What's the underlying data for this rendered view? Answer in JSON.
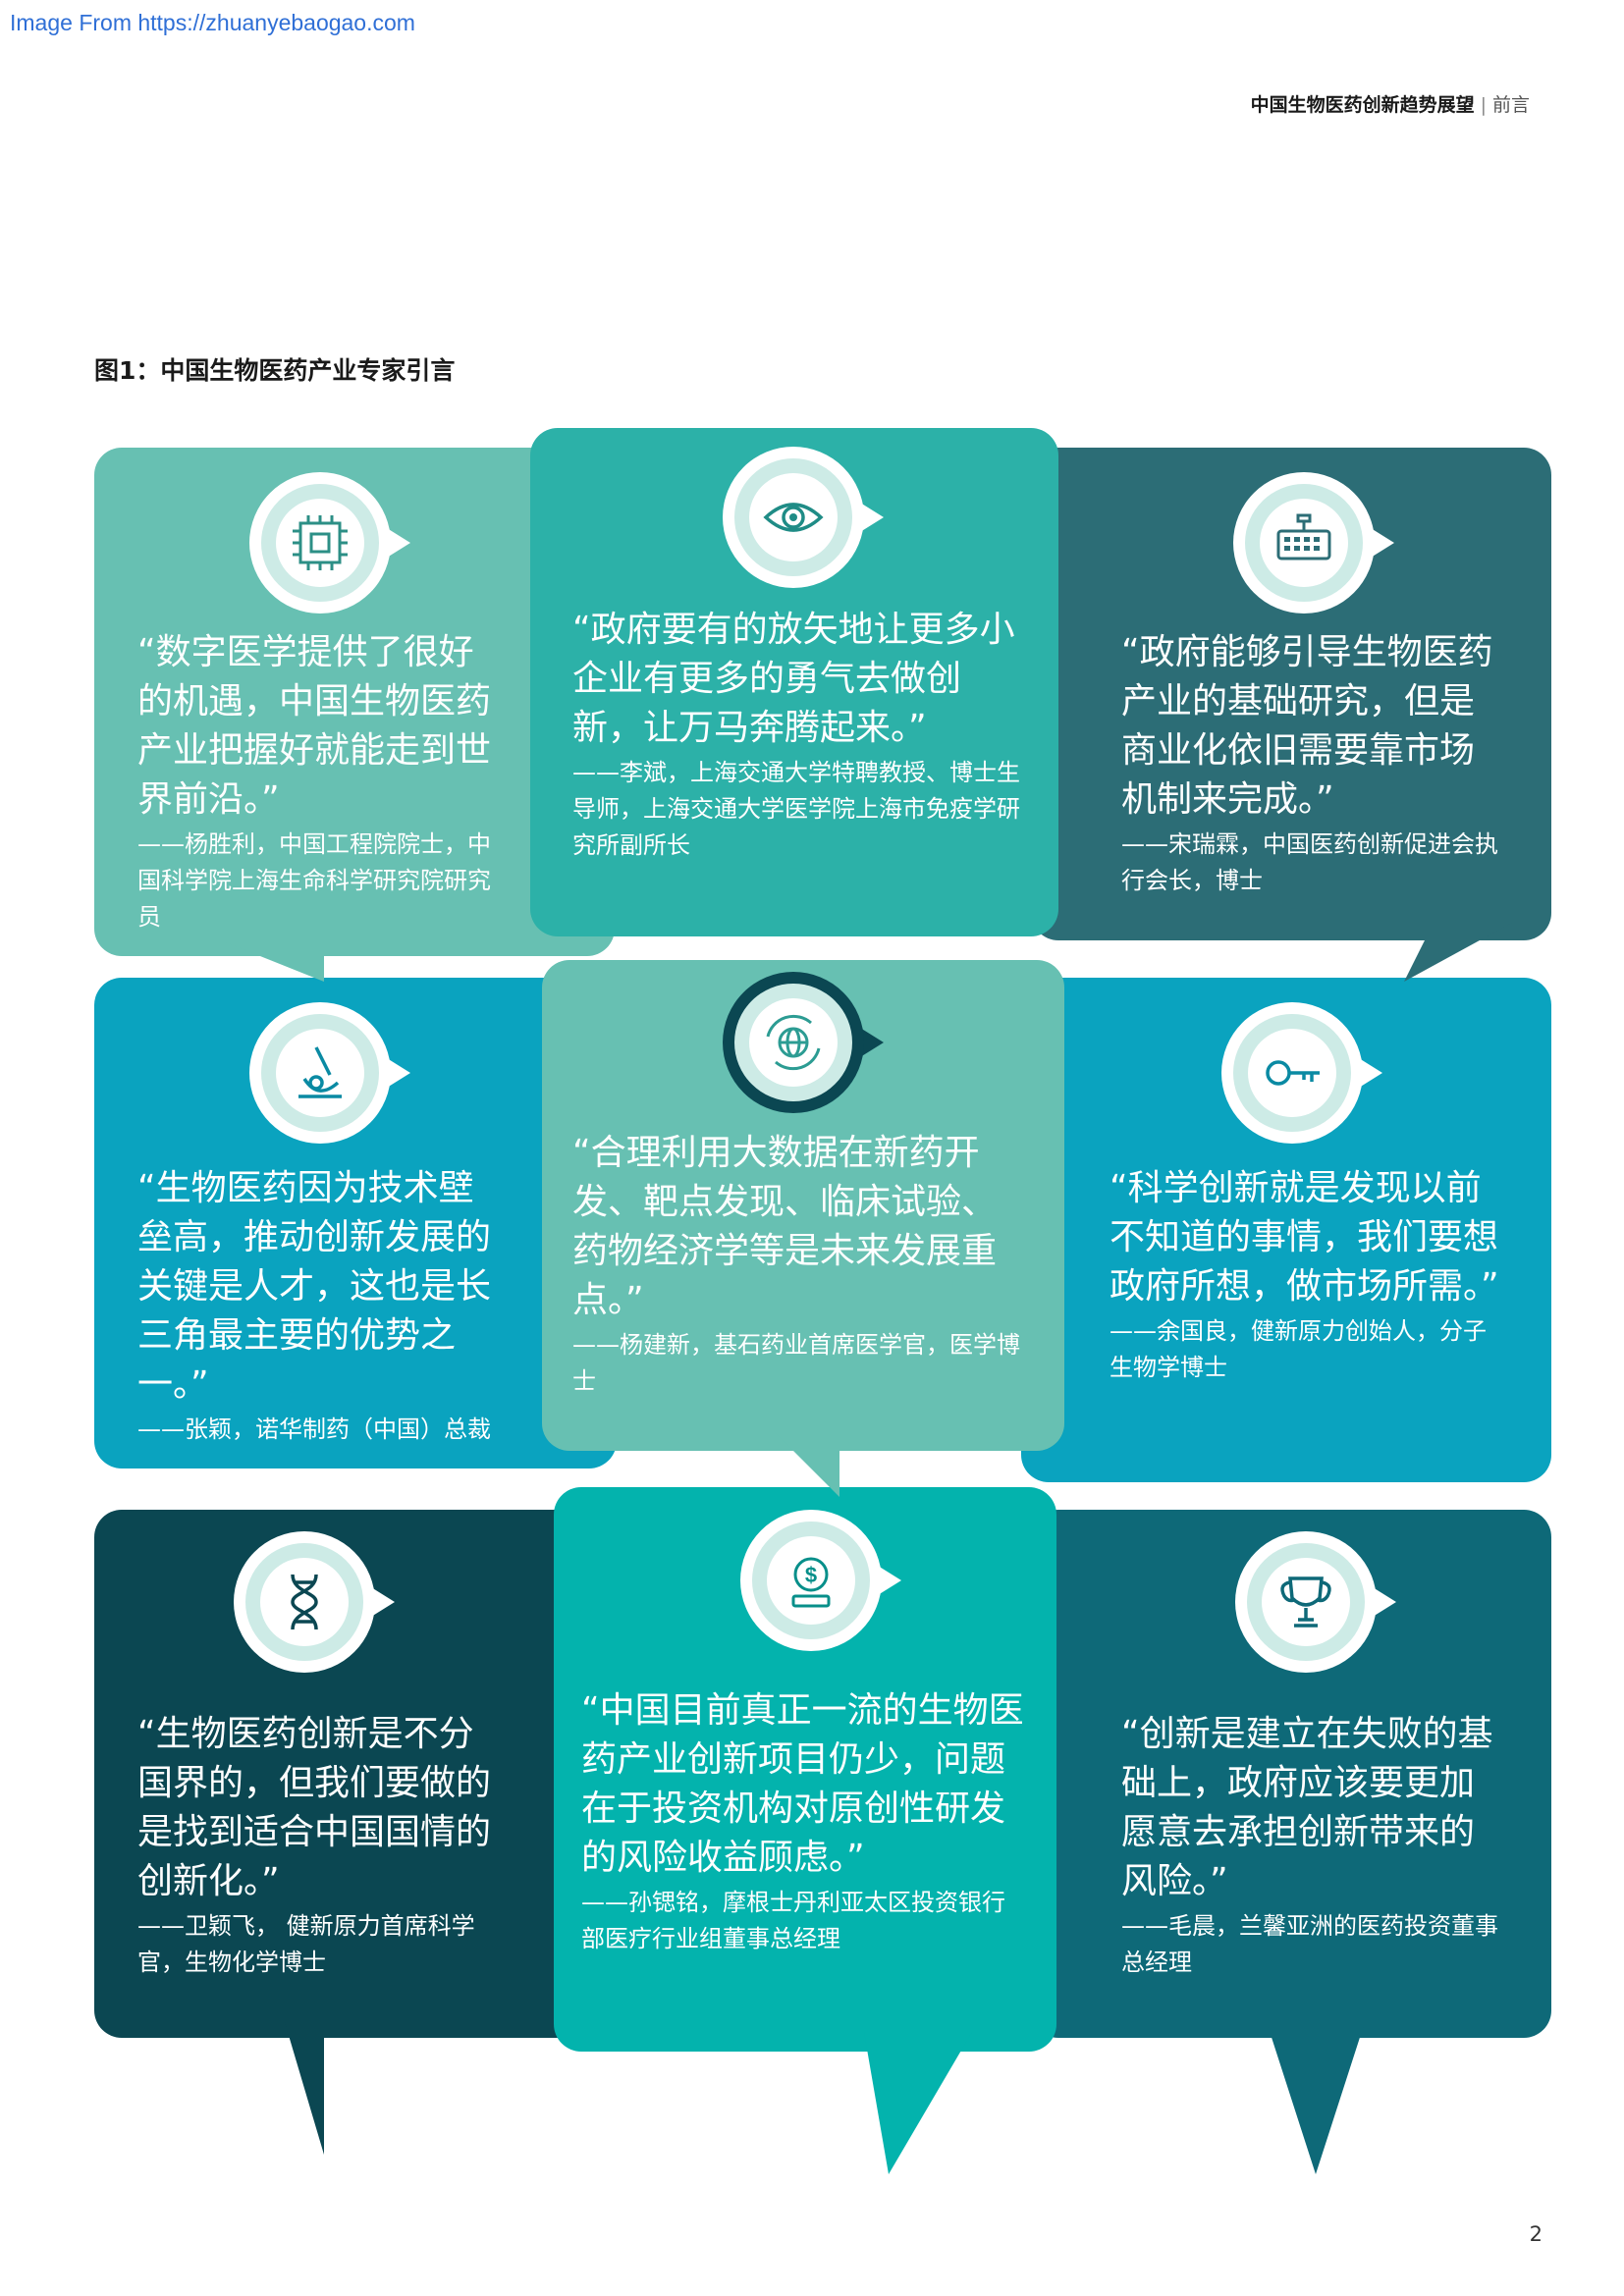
{
  "watermark": "Image From https://zhuanyebaogao.com",
  "header": {
    "doc_title": "中国生物医药创新趋势展望",
    "separator": "|",
    "section": "前言"
  },
  "figure_title": "图1：中国生物医药产业专家引言",
  "colors": {
    "teal_light": "#67c0b2",
    "teal_mid": "#2cb1a8",
    "teal_dark": "#2c6d76",
    "blue": "#0aa3bf",
    "navy": "#0b4752",
    "turquoise": "#03b3ad",
    "dark_teal": "#0e6978"
  },
  "quotes": [
    {
      "icon": "microchip-icon",
      "text": "“数字医学提供了很好的机遇，中国生物医药产业把握好就能走到世界前沿。”",
      "attribution": "——杨胜利，中国工程院院士，中国科学院上海生命科学研究院研究员"
    },
    {
      "icon": "eye-icon",
      "text": "“政府要有的放矢地让更多小企业有更多的勇气去做创新，让万马奔腾起来。”",
      "attribution": "——李斌，上海交通大学特聘教授、博士生导师，上海交通大学医学院上海市免疫学研究所副所长"
    },
    {
      "icon": "keyboard-icon",
      "text": "“政府能够引导生物医药产业的基础研究，但是商业化依旧需要靠市场机制来完成。”",
      "attribution": "——宋瑞霖，中国医药创新促进会执行会长，博士"
    },
    {
      "icon": "microscope-icon",
      "text": "“生物医药因为技术壁垒高，推动创新发展的关键是人才，这也是长三角最主要的优势之一。”",
      "attribution": "——张颖，诺华制药（中国）总裁"
    },
    {
      "icon": "globe-refresh-icon",
      "text": "“合理利用大数据在新药开发、靶点发现、临床试验、药物经济学等是未来发展重点。”",
      "attribution": "——杨建新，基石药业首席医学官，医学博士"
    },
    {
      "icon": "key-icon",
      "text": "“科学创新就是发现以前不知道的事情，我们要想政府所想，做市场所需。”",
      "attribution": "——余国良，健新原力创始人，分子生物学博士"
    },
    {
      "icon": "dna-icon",
      "text": "“生物医药创新是不分国界的，但我们要做的是找到适合中国国情的创新化。”",
      "attribution": "——卫颖飞， 健新原力首席科学官，生物化学博士"
    },
    {
      "icon": "dollar-coin-icon",
      "text": "“中国目前真正一流的生物医药产业创新项目仍少，问题在于投资机构对原创性研发的风险收益顾虑。”",
      "attribution": "——孙锶铭，摩根士丹利亚太区投资银行部医疗行业组董事总经理"
    },
    {
      "icon": "trophy-icon",
      "text": "“创新是建立在失败的基础上，政府应该要更加愿意去承担创新带来的风险。”",
      "attribution": "——毛晨，兰馨亚洲的医药投资董事总经理"
    }
  ],
  "page_number": "2"
}
